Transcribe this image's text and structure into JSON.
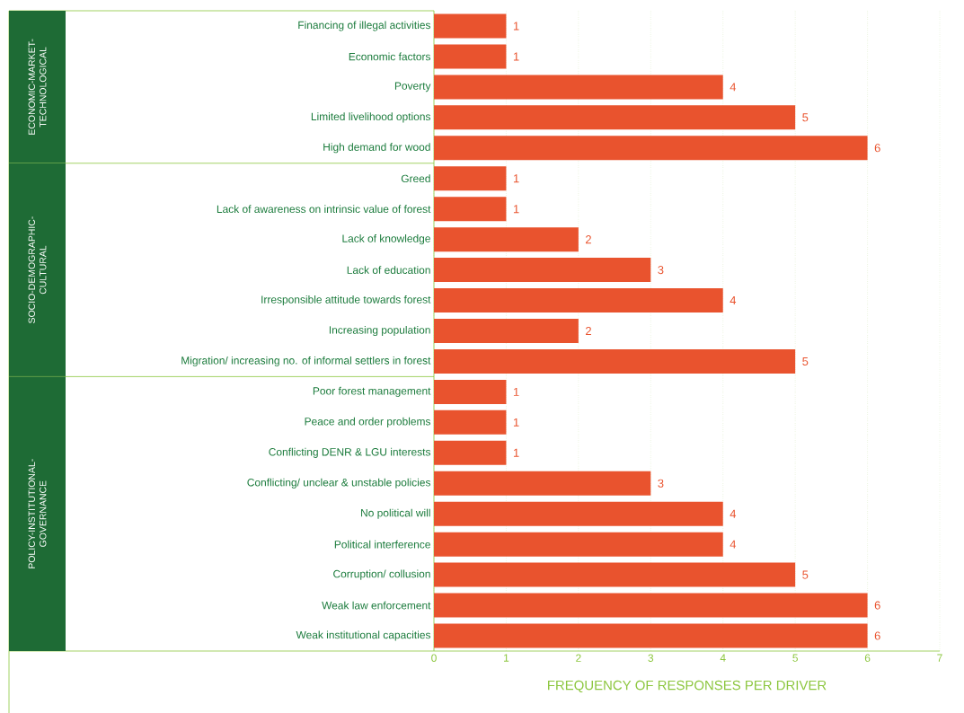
{
  "chart_data": {
    "type": "bar",
    "orientation": "horizontal",
    "categories": [
      "Financing of illegal activities",
      "Economic factors",
      "Poverty",
      "Limited livelihood options",
      "High demand for wood",
      "Greed",
      "Lack of awareness on intrinsic value of forest",
      "Lack of knowledge",
      "Lack of education",
      "Irresponsible attitude towards forest",
      "Increasing population",
      "Migration/ increasing no. of informal settlers in forest",
      "Poor forest management",
      "Peace and order problems",
      "Conflicting DENR & LGU interests",
      "Conflicting/ unclear & unstable policies",
      "No political will",
      "Political interference",
      "Corruption/ collusion",
      "Weak law enforcement",
      "Weak institutional capacities"
    ],
    "values": [
      1,
      1,
      4,
      5,
      6,
      1,
      1,
      2,
      3,
      4,
      2,
      5,
      1,
      1,
      1,
      3,
      4,
      4,
      5,
      6,
      6
    ],
    "color": "#e9532e",
    "xlim": [
      0,
      7
    ],
    "xticks": [
      0,
      1,
      2,
      3,
      4,
      5,
      6,
      7
    ],
    "xlabel": "FREQUENCY OF RESPONSES PER DRIVER",
    "grid": "x",
    "data_labels": true,
    "annotations": [
      "ECONOMIC-MARKET-TECHNOLOGICAL",
      "SOCIO-DEMOGRAPHIC-CULTURAL",
      "POLICY-INSTITUTIONAL-GOVERNANCE"
    ]
  }
}
